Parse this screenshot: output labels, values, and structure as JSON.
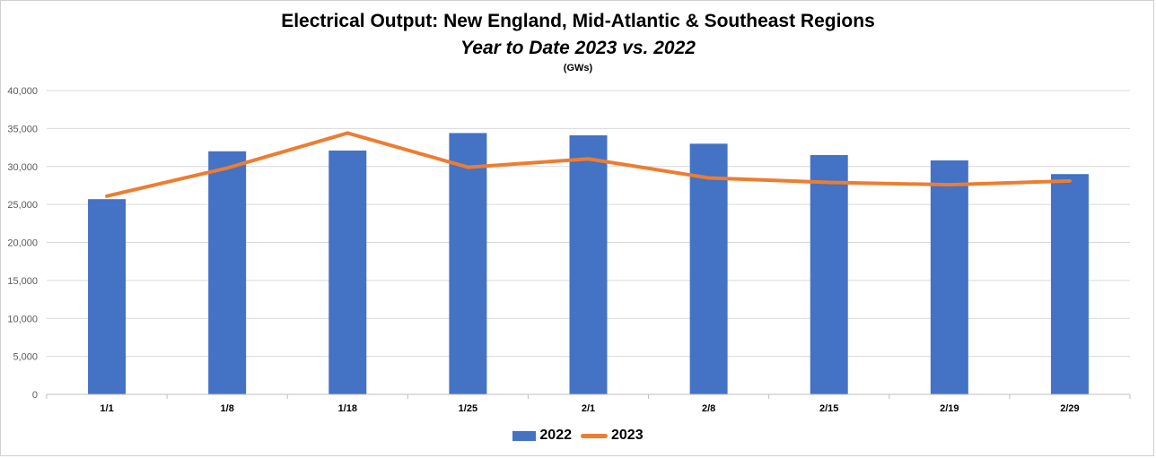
{
  "chart_data": {
    "type": "bar",
    "title": "Electrical Output:  New England, Mid-Atlantic & Southeast Regions",
    "subtitle": "Year to Date 2023 vs. 2022",
    "unit_label": "(GWs)",
    "xlabel": "",
    "ylabel": "",
    "categories": [
      "1/1",
      "1/8",
      "1/18",
      "1/25",
      "2/1",
      "2/8",
      "2/15",
      "2/19",
      "2/29"
    ],
    "ylim": [
      0,
      40000
    ],
    "yticks": [
      0,
      5000,
      10000,
      15000,
      20000,
      25000,
      30000,
      35000,
      40000
    ],
    "ytick_labels": [
      "0",
      "5,000",
      "10,000",
      "15,000",
      "20,000",
      "25,000",
      "30,000",
      "35,000",
      "40,000"
    ],
    "grid": true,
    "legend_position": "bottom",
    "series": [
      {
        "name": "2022",
        "kind": "bar",
        "color": "#4472C4",
        "values": [
          25700,
          32000,
          32100,
          34400,
          34100,
          33000,
          31500,
          30800,
          29000
        ]
      },
      {
        "name": "2023",
        "kind": "line",
        "color": "#ED7D31",
        "values": [
          26100,
          29800,
          34400,
          29900,
          31000,
          28500,
          27900,
          27600,
          28100
        ]
      }
    ]
  }
}
